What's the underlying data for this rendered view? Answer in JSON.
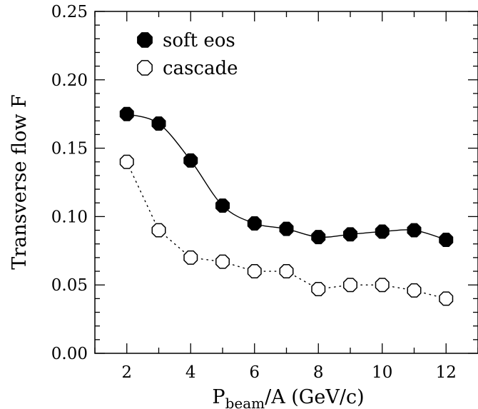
{
  "chart_data": {
    "type": "line",
    "xlabel": {
      "main": "P",
      "subscript": "beam",
      "rest": "/A (GeV/c)"
    },
    "ylabel": "Transverse flow F",
    "xlim": [
      1,
      13
    ],
    "ylim": [
      0,
      0.25
    ],
    "x_ticks": [
      "2",
      "4",
      "6",
      "8",
      "10",
      "12"
    ],
    "y_ticks": [
      "0.00",
      "0.05",
      "0.10",
      "0.15",
      "0.20",
      "0.25"
    ],
    "legend_position": "top-left",
    "grid": false,
    "x": [
      2,
      3,
      4,
      5,
      6,
      7,
      8,
      9,
      10,
      11,
      12
    ],
    "series": [
      {
        "name": "soft eos",
        "marker": "filled-octagon",
        "line": "solid-smooth",
        "values": [
          0.175,
          0.168,
          0.141,
          0.108,
          0.095,
          0.091,
          0.085,
          0.087,
          0.089,
          0.09,
          0.083
        ]
      },
      {
        "name": "cascade",
        "marker": "open-octagon",
        "line": "dotted",
        "values": [
          0.14,
          0.09,
          0.07,
          0.067,
          0.06,
          0.06,
          0.047,
          0.05,
          0.05,
          0.046,
          0.04
        ]
      }
    ]
  }
}
